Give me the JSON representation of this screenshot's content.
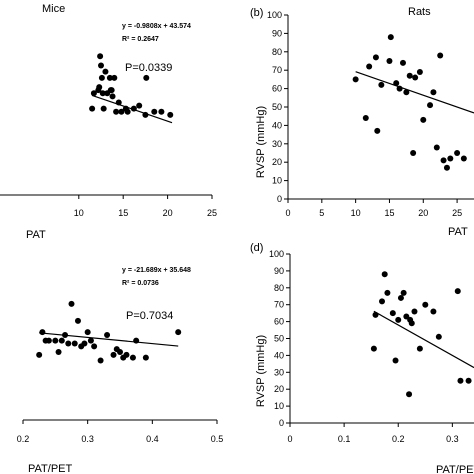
{
  "chart_data": [
    {
      "type": "scatter",
      "panel_label": "",
      "title": "Mice",
      "xlabel": "PAT",
      "ylabel": "",
      "xlim": [
        0,
        25
      ],
      "x_ticks": [
        "10",
        "15",
        "20",
        "25"
      ],
      "equation": "y = -0.9808x + 43.574",
      "r_squared": "R² = 0.2647",
      "p_value": "P=0.0339",
      "trendline": {
        "slope": -0.9808,
        "intercept": 43.574,
        "x_range": [
          11.5,
          20.5
        ]
      },
      "points": [
        [
          11.5,
          28
        ],
        [
          11.7,
          33
        ],
        [
          12.2,
          34
        ],
        [
          12.3,
          35
        ],
        [
          12.4,
          45
        ],
        [
          12.5,
          42
        ],
        [
          12.6,
          38
        ],
        [
          12.7,
          33
        ],
        [
          12.8,
          28
        ],
        [
          13.0,
          40
        ],
        [
          13.2,
          33
        ],
        [
          13.5,
          38
        ],
        [
          13.6,
          34
        ],
        [
          13.7,
          34
        ],
        [
          13.8,
          32
        ],
        [
          14.0,
          38
        ],
        [
          14.2,
          27
        ],
        [
          14.5,
          30
        ],
        [
          14.8,
          27
        ],
        [
          15.3,
          28
        ],
        [
          15.5,
          27
        ],
        [
          16.2,
          28
        ],
        [
          16.8,
          29
        ],
        [
          17.5,
          26
        ],
        [
          17.6,
          38
        ],
        [
          18.5,
          27
        ],
        [
          19.3,
          27
        ],
        [
          20.3,
          26
        ]
      ]
    },
    {
      "type": "scatter",
      "panel_label": "(b)",
      "title": "Rats",
      "xlabel": "PAT",
      "ylabel": "RVSP (mmHg)",
      "xlim": [
        0,
        27.5
      ],
      "ylim": [
        0,
        100
      ],
      "x_ticks": [
        "0",
        "5",
        "10",
        "15",
        "20",
        "25"
      ],
      "y_ticks": [
        "0",
        "10",
        "20",
        "30",
        "40",
        "50",
        "60",
        "70",
        "80",
        "90",
        "100"
      ],
      "trendline": {
        "slope": -1.28,
        "intercept": 82,
        "x_range": [
          10,
          27.5
        ]
      },
      "points": [
        [
          10,
          65
        ],
        [
          11.5,
          44
        ],
        [
          12,
          72
        ],
        [
          13,
          77
        ],
        [
          13.2,
          37
        ],
        [
          13.8,
          62
        ],
        [
          15,
          75
        ],
        [
          15.2,
          88
        ],
        [
          16,
          63
        ],
        [
          16.5,
          60
        ],
        [
          17,
          74
        ],
        [
          17.5,
          58
        ],
        [
          18,
          67
        ],
        [
          18.5,
          25
        ],
        [
          18.8,
          66
        ],
        [
          19.5,
          69
        ],
        [
          20,
          43
        ],
        [
          21,
          51
        ],
        [
          21.5,
          58
        ],
        [
          22,
          28
        ],
        [
          22.5,
          78
        ],
        [
          23,
          21
        ],
        [
          23.5,
          17
        ],
        [
          24,
          22
        ],
        [
          25,
          25
        ],
        [
          26,
          22
        ]
      ]
    },
    {
      "type": "scatter",
      "panel_label": "",
      "title": "",
      "xlabel": "PAT/PET",
      "ylabel": "",
      "xlim": [
        0.2,
        0.5
      ],
      "x_ticks": [
        "0.2",
        "0.3",
        "0.4",
        "0.5"
      ],
      "equation": "y = -21.689x + 35.648",
      "r_squared": "R² = 0.0736",
      "p_value": "P=0.7034",
      "trendline": {
        "slope": -21.689,
        "intercept": 35.648,
        "x_range": [
          0.225,
          0.44
        ]
      },
      "points": [
        [
          0.225,
          23
        ],
        [
          0.23,
          31
        ],
        [
          0.235,
          28
        ],
        [
          0.24,
          28
        ],
        [
          0.25,
          28
        ],
        [
          0.255,
          24
        ],
        [
          0.26,
          28
        ],
        [
          0.265,
          30
        ],
        [
          0.27,
          27
        ],
        [
          0.275,
          41
        ],
        [
          0.28,
          27
        ],
        [
          0.285,
          35
        ],
        [
          0.29,
          26
        ],
        [
          0.295,
          27
        ],
        [
          0.3,
          31
        ],
        [
          0.305,
          28
        ],
        [
          0.31,
          26
        ],
        [
          0.32,
          21
        ],
        [
          0.33,
          30
        ],
        [
          0.34,
          23
        ],
        [
          0.345,
          25
        ],
        [
          0.35,
          24
        ],
        [
          0.355,
          22
        ],
        [
          0.36,
          23
        ],
        [
          0.37,
          22
        ],
        [
          0.375,
          28
        ],
        [
          0.39,
          22
        ],
        [
          0.44,
          31
        ]
      ]
    },
    {
      "type": "scatter",
      "panel_label": "(d)",
      "title": "",
      "xlabel": "PAT/PET",
      "ylabel": "RVSP (mmHg)",
      "xlim": [
        0,
        0.34
      ],
      "ylim": [
        0,
        100
      ],
      "x_ticks": [
        "0",
        "0.1",
        "0.2",
        "0.3"
      ],
      "y_ticks": [
        "0",
        "10",
        "20",
        "30",
        "40",
        "50",
        "60",
        "70",
        "80",
        "90",
        "100"
      ],
      "trendline": {
        "slope": -180,
        "intercept": 94,
        "x_range": [
          0.155,
          0.34
        ]
      },
      "points": [
        [
          0.155,
          44
        ],
        [
          0.158,
          64
        ],
        [
          0.17,
          72
        ],
        [
          0.175,
          88
        ],
        [
          0.18,
          77
        ],
        [
          0.19,
          65
        ],
        [
          0.195,
          37
        ],
        [
          0.2,
          61
        ],
        [
          0.205,
          74
        ],
        [
          0.21,
          77
        ],
        [
          0.215,
          63
        ],
        [
          0.22,
          17
        ],
        [
          0.222,
          61
        ],
        [
          0.225,
          59
        ],
        [
          0.23,
          66
        ],
        [
          0.24,
          44
        ],
        [
          0.25,
          70
        ],
        [
          0.265,
          66
        ],
        [
          0.275,
          51
        ],
        [
          0.31,
          78
        ],
        [
          0.315,
          25
        ],
        [
          0.33,
          25
        ]
      ]
    }
  ]
}
